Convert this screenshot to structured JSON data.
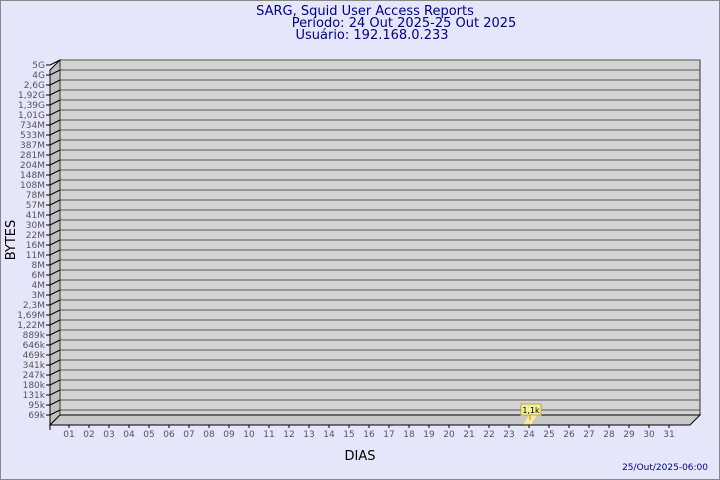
{
  "chart_data": {
    "type": "bar",
    "title": "SARG, Squid User Access Reports",
    "subtitle": [
      "Período: 24 Out 2025-25 Out 2025",
      "Usuário: 192.168.0.233"
    ],
    "xlabel": "DIAS",
    "ylabel": "BYTES",
    "y_scale": "log",
    "y_ticks": [
      "5G",
      "4G",
      "2,6G",
      "1,92G",
      "1,39G",
      "1,01G",
      "734M",
      "533M",
      "387M",
      "281M",
      "204M",
      "148M",
      "108M",
      "78M",
      "57M",
      "41M",
      "30M",
      "22M",
      "16M",
      "11M",
      "8M",
      "6M",
      "4M",
      "3M",
      "2,3M",
      "1,69M",
      "1,22M",
      "889k",
      "646k",
      "469k",
      "341k",
      "247k",
      "180k",
      "131k",
      "95k",
      "69k"
    ],
    "categories": [
      "01",
      "02",
      "03",
      "04",
      "05",
      "06",
      "07",
      "08",
      "09",
      "10",
      "11",
      "12",
      "13",
      "14",
      "15",
      "16",
      "17",
      "18",
      "19",
      "20",
      "21",
      "22",
      "23",
      "24",
      "25",
      "26",
      "27",
      "28",
      "29",
      "30",
      "31"
    ],
    "bars": [
      {
        "category": "24",
        "value": 1100,
        "label": "1,1k"
      }
    ],
    "grid": true,
    "footer": "25/Out/2025-06:00",
    "colors": {
      "background": "#e6e6fa",
      "plot": "#d3d3d3",
      "bar": "#ffeb8c",
      "title": "#00008b"
    }
  }
}
